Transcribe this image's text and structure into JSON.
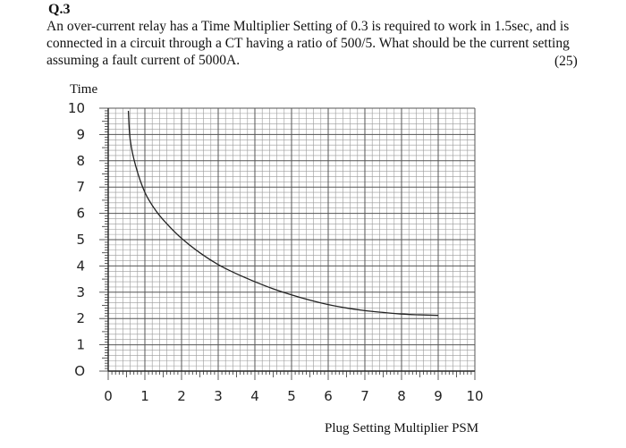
{
  "question": {
    "number": "Q.3",
    "text": "An over-current relay has a Time Multiplier Setting of 0.3 is required to work in 1.5sec, and is connected in a circuit through a CT having a ratio of 500/5. What should be the current setting assuming a fault current of 5000A.",
    "marks": "(25)"
  },
  "chart_data": {
    "type": "line",
    "ylabel": "Time",
    "xlabel": "Plug Setting Multiplier PSM",
    "xlim": [
      0,
      10
    ],
    "ylim": [
      0,
      10
    ],
    "xticks": [
      "0",
      "1",
      "2",
      "3",
      "4",
      "5",
      "6",
      "7",
      "8",
      "9",
      "10"
    ],
    "yticks": [
      "O",
      "1",
      "2",
      "3",
      "4",
      "5",
      "6",
      "7",
      "8",
      "9",
      "10"
    ],
    "grid": true,
    "series": [
      {
        "x": [
          0.55,
          0.6,
          0.75,
          1.0,
          1.3,
          1.6,
          2.0,
          2.5,
          3.0,
          3.5,
          4.0,
          4.5,
          5.0,
          5.5,
          6.0,
          6.5,
          7.0,
          7.5,
          8.0,
          8.5,
          9.0
        ],
        "y": [
          9.9,
          8.8,
          7.8,
          6.8,
          6.1,
          5.6,
          5.05,
          4.5,
          4.05,
          3.7,
          3.4,
          3.13,
          2.9,
          2.7,
          2.53,
          2.4,
          2.3,
          2.23,
          2.17,
          2.14,
          2.12
        ]
      }
    ]
  }
}
